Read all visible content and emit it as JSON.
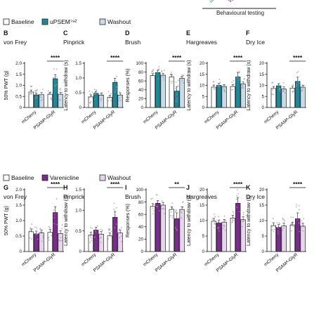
{
  "header": {
    "fragment_left": "ur",
    "fragment_right": "Ve",
    "caption": "Behavioural testing"
  },
  "groups": [
    "mCherry",
    "PSAMᴬ-GlyR"
  ],
  "sections": [
    {
      "id": "upsem",
      "legend": [
        {
          "label": "Baseline",
          "color": "#ffffff"
        },
        {
          "label": "uPSEM⁷⁹²",
          "color": "#1a8a9a"
        },
        {
          "label": "Washout",
          "color": "#c7dcea"
        }
      ],
      "treatment_color": "#1a8a9a",
      "washout_color": "#c7dcea"
    },
    {
      "id": "varenicline",
      "legend": [
        {
          "label": "Baseline",
          "color": "#ffffff"
        },
        {
          "label": "Varenicline",
          "color": "#7b2a8e"
        },
        {
          "label": "Washout",
          "color": "#e8d4ee"
        }
      ],
      "treatment_color": "#7b2a8e",
      "washout_color": "#e8d4ee"
    }
  ],
  "chart_data": [
    {
      "type": "bar",
      "panel": "B",
      "title": "von Frey",
      "ylabel": "50% PWT (g)",
      "yticks": [
        "0",
        "0.5",
        "1.0",
        "1.5",
        "2.0"
      ],
      "ylim": [
        0,
        2
      ],
      "categories": [
        "mCherry",
        "PSAMᴬ-GlyR"
      ],
      "series": [
        {
          "name": "Baseline",
          "values": [
            0.7,
            0.6
          ]
        },
        {
          "name": "uPSEM⁷⁹²",
          "values": [
            0.57,
            1.3
          ]
        },
        {
          "name": "Washout",
          "values": [
            0.58,
            0.6
          ]
        }
      ],
      "significance": "****"
    },
    {
      "type": "bar",
      "panel": "C",
      "title": "Pinprick",
      "ylabel": "Latency to withdraw (s)",
      "yticks": [
        "0",
        "0.5",
        "1.0",
        "1.5"
      ],
      "ylim": [
        0,
        1.5
      ],
      "categories": [
        "mCherry",
        "PSAMᴬ-GlyR"
      ],
      "series": [
        {
          "name": "Baseline",
          "values": [
            0.36,
            0.35
          ]
        },
        {
          "name": "uPSEM⁷⁹²",
          "values": [
            0.48,
            0.85
          ]
        },
        {
          "name": "Washout",
          "values": [
            0.42,
            0.42
          ]
        }
      ],
      "significance": "****"
    },
    {
      "type": "bar",
      "panel": "D",
      "title": "Brush",
      "ylabel": "Responses (%)",
      "yticks": [
        "0",
        "20",
        "40",
        "60",
        "80",
        "100"
      ],
      "ylim": [
        0,
        100
      ],
      "categories": [
        "mCherry",
        "PSAMᴬ-GlyR"
      ],
      "series": [
        {
          "name": "Baseline",
          "values": [
            72,
            69
          ]
        },
        {
          "name": "uPSEM⁷⁹²",
          "values": [
            79,
            37
          ]
        },
        {
          "name": "Washout",
          "values": [
            73,
            66
          ]
        }
      ],
      "significance": "****"
    },
    {
      "type": "bar",
      "panel": "E",
      "title": "Hargreaves",
      "ylabel": "Latency to withdraw (s)",
      "yticks": [
        "0",
        "5",
        "10",
        "15",
        "20"
      ],
      "ylim": [
        0,
        20
      ],
      "categories": [
        "mCherry",
        "PSAMᴬ-GlyR"
      ],
      "series": [
        {
          "name": "Baseline",
          "values": [
            9.2,
            9.5
          ]
        },
        {
          "name": "uPSEM⁷⁹²",
          "values": [
            10,
            13.8
          ]
        },
        {
          "name": "Washout",
          "values": [
            9.5,
            10.6
          ]
        }
      ],
      "significance": "****"
    },
    {
      "type": "bar",
      "panel": "F",
      "title": "Dry Ice",
      "ylabel": "Latency to withdraw (s)",
      "yticks": [
        "0",
        "5",
        "10",
        "15",
        "20"
      ],
      "ylim": [
        0,
        20
      ],
      "categories": [
        "mCherry",
        "PSAMᴬ-GlyR"
      ],
      "series": [
        {
          "name": "Baseline",
          "values": [
            8.6,
            8.7
          ]
        },
        {
          "name": "uPSEM⁷⁹²",
          "values": [
            9.8,
            11.8
          ]
        },
        {
          "name": "Washout",
          "values": [
            8.4,
            9.2
          ]
        }
      ],
      "significance": "****"
    },
    {
      "type": "bar",
      "panel": "G",
      "title": "von Frey",
      "ylabel": "50% PWT (g)",
      "yticks": [
        "0",
        "0.5",
        "1.0",
        "1.5",
        "2.0"
      ],
      "ylim": [
        0,
        2
      ],
      "categories": [
        "mCherry",
        "PSAMᴬ-GlyR"
      ],
      "series": [
        {
          "name": "Baseline",
          "values": [
            0.64,
            0.62
          ]
        },
        {
          "name": "Varenicline",
          "values": [
            0.57,
            1.26
          ]
        },
        {
          "name": "Washout",
          "values": [
            0.6,
            0.58
          ]
        }
      ],
      "significance": "****"
    },
    {
      "type": "bar",
      "panel": "H",
      "title": "Pinprick",
      "ylabel": "Latency to withdraw (s)",
      "yticks": [
        "0",
        "0.5",
        "1.0",
        "1.5"
      ],
      "ylim": [
        0,
        1.5
      ],
      "categories": [
        "mCherry",
        "PSAMᴬ-GlyR"
      ],
      "series": [
        {
          "name": "Baseline",
          "values": [
            0.4,
            0.38
          ]
        },
        {
          "name": "Varenicline",
          "values": [
            0.52,
            0.83
          ]
        },
        {
          "name": "Washout",
          "values": [
            0.42,
            0.45
          ]
        }
      ],
      "significance": "****"
    },
    {
      "type": "bar",
      "panel": "I",
      "title": "Brush",
      "ylabel": "Responses (%)",
      "yticks": [
        "0",
        "20",
        "40",
        "60",
        "80",
        "100"
      ],
      "ylim": [
        0,
        100
      ],
      "categories": [
        "mCherry",
        "PSAMᴬ-GlyR"
      ],
      "series": [
        {
          "name": "Baseline",
          "values": [
            73,
            68
          ]
        },
        {
          "name": "Varenicline",
          "values": [
            78,
            53
          ]
        },
        {
          "name": "Washout",
          "values": [
            75,
            68
          ]
        }
      ],
      "significance": "**"
    },
    {
      "type": "bar",
      "panel": "J",
      "title": "Hargreaves",
      "ylabel": "Latency to withdraw (s)",
      "yticks": [
        "0",
        "5",
        "10",
        "15",
        "20"
      ],
      "ylim": [
        0,
        20
      ],
      "categories": [
        "mCherry",
        "PSAMᴬ-GlyR"
      ],
      "series": [
        {
          "name": "Baseline",
          "values": [
            9.8,
            10.8
          ]
        },
        {
          "name": "Varenicline",
          "values": [
            9.2,
            15.6
          ]
        },
        {
          "name": "Washout",
          "values": [
            9.5,
            10.3
          ]
        }
      ],
      "significance": "****"
    },
    {
      "type": "bar",
      "panel": "K",
      "title": "Dry Ice",
      "ylabel": "Latency to withdraw (s)",
      "yticks": [
        "0",
        "5",
        "10",
        "15",
        "20"
      ],
      "ylim": [
        0,
        20
      ],
      "categories": [
        "mCherry",
        "PSAMᴬ-GlyR"
      ],
      "series": [
        {
          "name": "Baseline",
          "values": [
            8.4,
            8.6
          ]
        },
        {
          "name": "Varenicline",
          "values": [
            7.8,
            10.6
          ]
        },
        {
          "name": "Washout",
          "values": [
            8.3,
            8.2
          ]
        }
      ],
      "significance": "****"
    }
  ]
}
